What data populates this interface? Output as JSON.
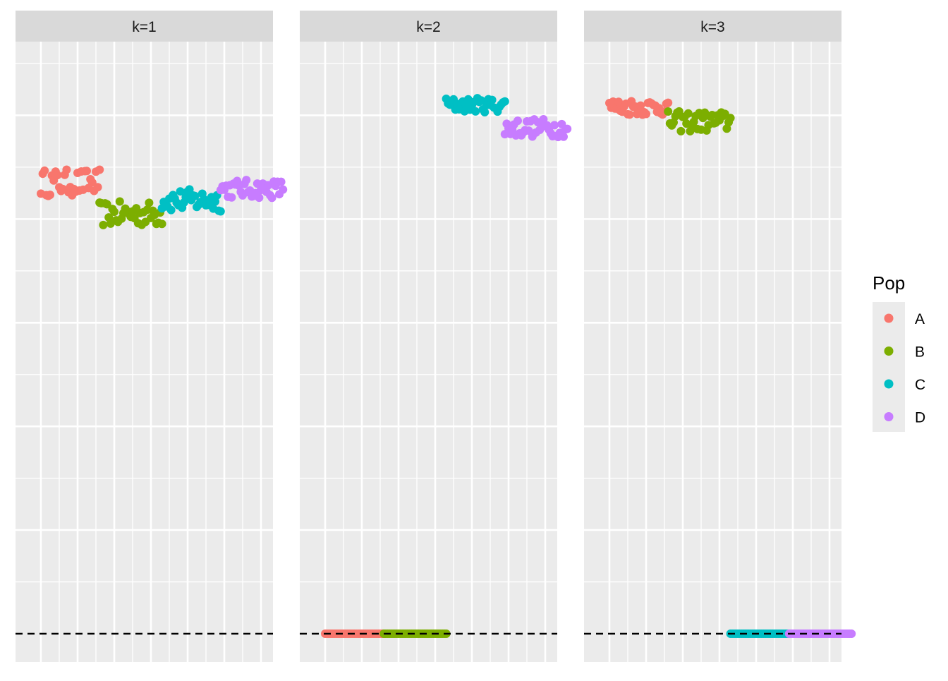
{
  "chart_data": {
    "type": "scatter",
    "facet_labels": [
      "k=1",
      "k=2",
      "k=3"
    ],
    "x_range": [
      0,
      70
    ],
    "y_range": [
      0,
      0.55
    ],
    "reference_line_y": 0,
    "legend_title": "Pop",
    "legend_position": "right",
    "populations": [
      "A",
      "B",
      "C",
      "D"
    ],
    "colors": {
      "A": "#F8766D",
      "B": "#7CAE00",
      "C": "#00BFC4",
      "D": "#C77CFF"
    },
    "line_color": "#000000",
    "facets": [
      {
        "label": "k=1",
        "series": [
          {
            "pop": "A",
            "x_start": 0,
            "x_end": 16,
            "y_center": 0.435,
            "y_spread": 0.013
          },
          {
            "pop": "B",
            "x_start": 16,
            "x_end": 33,
            "y_center": 0.405,
            "y_spread": 0.012
          },
          {
            "pop": "C",
            "x_start": 33,
            "x_end": 49,
            "y_center": 0.418,
            "y_spread": 0.011
          },
          {
            "pop": "D",
            "x_start": 49,
            "x_end": 66,
            "y_center": 0.429,
            "y_spread": 0.009
          }
        ]
      },
      {
        "label": "k=2",
        "series": [
          {
            "pop": "A",
            "x_start": 0,
            "x_end": 16,
            "y_center": 0.0,
            "y_spread": 0.0
          },
          {
            "pop": "B",
            "x_start": 16,
            "x_end": 33,
            "y_center": 0.0,
            "y_spread": 0.0
          },
          {
            "pop": "C",
            "x_start": 33,
            "x_end": 49,
            "y_center": 0.51,
            "y_spread": 0.007
          },
          {
            "pop": "D",
            "x_start": 49,
            "x_end": 66,
            "y_center": 0.488,
            "y_spread": 0.009
          }
        ]
      },
      {
        "label": "k=3",
        "series": [
          {
            "pop": "A",
            "x_start": 0,
            "x_end": 16,
            "y_center": 0.508,
            "y_spread": 0.008
          },
          {
            "pop": "B",
            "x_start": 16,
            "x_end": 33,
            "y_center": 0.494,
            "y_spread": 0.01
          },
          {
            "pop": "C",
            "x_start": 33,
            "x_end": 49,
            "y_center": 0.0,
            "y_spread": 0.0
          },
          {
            "pop": "D",
            "x_start": 49,
            "x_end": 66,
            "y_center": 0.0,
            "y_spread": 0.0
          }
        ]
      }
    ]
  }
}
